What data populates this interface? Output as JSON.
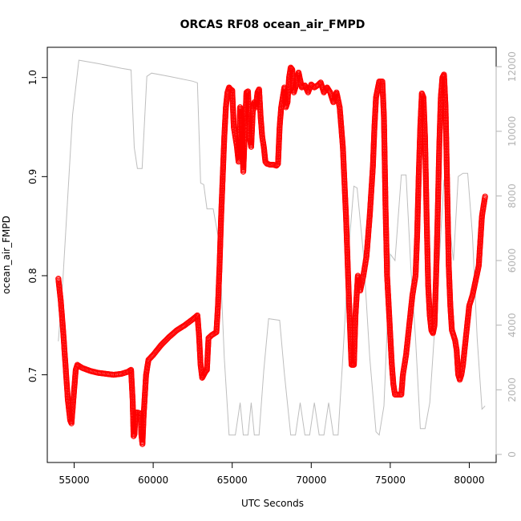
{
  "chart_data": {
    "type": "scatter",
    "title": "ORCAS RF08 ocean_air_FMPD",
    "xlabel": "UTC Seconds",
    "ylabel": "ocean_air_FMPD",
    "xlim": [
      53300,
      81700
    ],
    "ylim": [
      0.6115,
      1.0305
    ],
    "y2lim": [
      -250,
      12600
    ],
    "x_ticks": [
      55000,
      60000,
      65000,
      70000,
      75000,
      80000
    ],
    "y_ticks": [
      0.7,
      0.8,
      0.9,
      1.0
    ],
    "y2_ticks": [
      0,
      2000,
      4000,
      6000,
      8000,
      10000,
      12000
    ],
    "x_tick_labels": [
      "55000",
      "60000",
      "65000",
      "70000",
      "75000",
      "80000"
    ],
    "y_tick_labels": [
      "0.7",
      "0.8",
      "0.9",
      "1.0"
    ],
    "y2_tick_labels": [
      "0",
      "2000",
      "4000",
      "6000",
      "8000",
      "10000",
      "12000"
    ],
    "grid": false,
    "colors": {
      "primary": "#ff0000",
      "secondary": "#bebebe",
      "axis": "#000000",
      "axis_right": "#b3b3b3"
    },
    "series": [
      {
        "axis": "left",
        "style": "open-circles",
        "points": [
          [
            54000,
            0.797
          ],
          [
            54150,
            0.775
          ],
          [
            54300,
            0.745
          ],
          [
            54450,
            0.71
          ],
          [
            54600,
            0.675
          ],
          [
            54750,
            0.654
          ],
          [
            54830,
            0.651
          ],
          [
            54950,
            0.675
          ],
          [
            55100,
            0.705
          ],
          [
            55200,
            0.71
          ],
          [
            55500,
            0.707
          ],
          [
            56000,
            0.704
          ],
          [
            56500,
            0.702
          ],
          [
            57000,
            0.701
          ],
          [
            57500,
            0.7
          ],
          [
            58000,
            0.701
          ],
          [
            58400,
            0.703
          ],
          [
            58600,
            0.705
          ],
          [
            58700,
            0.675
          ],
          [
            58760,
            0.638
          ],
          [
            58820,
            0.64
          ],
          [
            58880,
            0.662
          ],
          [
            59000,
            0.662
          ],
          [
            59200,
            0.661
          ],
          [
            59250,
            0.64
          ],
          [
            59320,
            0.63
          ],
          [
            59400,
            0.66
          ],
          [
            59550,
            0.7
          ],
          [
            59700,
            0.715
          ],
          [
            60000,
            0.72
          ],
          [
            60500,
            0.73
          ],
          [
            61000,
            0.738
          ],
          [
            61500,
            0.745
          ],
          [
            62000,
            0.75
          ],
          [
            62500,
            0.756
          ],
          [
            62800,
            0.76
          ],
          [
            62900,
            0.74
          ],
          [
            63000,
            0.71
          ],
          [
            63100,
            0.697
          ],
          [
            63200,
            0.7
          ],
          [
            63300,
            0.703
          ],
          [
            63400,
            0.705
          ],
          [
            63500,
            0.737
          ],
          [
            63700,
            0.74
          ],
          [
            63900,
            0.742
          ],
          [
            64000,
            0.743
          ],
          [
            64100,
            0.77
          ],
          [
            64200,
            0.81
          ],
          [
            64300,
            0.86
          ],
          [
            64400,
            0.9
          ],
          [
            64500,
            0.94
          ],
          [
            64600,
            0.97
          ],
          [
            64700,
            0.985
          ],
          [
            64800,
            0.99
          ],
          [
            64900,
            0.988
          ],
          [
            65000,
            0.987
          ],
          [
            65100,
            0.95
          ],
          [
            65200,
            0.94
          ],
          [
            65300,
            0.93
          ],
          [
            65400,
            0.915
          ],
          [
            65500,
            0.97
          ],
          [
            65600,
            0.96
          ],
          [
            65700,
            0.905
          ],
          [
            65800,
            0.945
          ],
          [
            65900,
            0.985
          ],
          [
            66000,
            0.986
          ],
          [
            66100,
            0.94
          ],
          [
            66200,
            0.93
          ],
          [
            66300,
            0.965
          ],
          [
            66400,
            0.975
          ],
          [
            66500,
            0.97
          ],
          [
            66600,
            0.985
          ],
          [
            66700,
            0.988
          ],
          [
            66800,
            0.96
          ],
          [
            66900,
            0.94
          ],
          [
            67000,
            0.93
          ],
          [
            67100,
            0.915
          ],
          [
            67200,
            0.913
          ],
          [
            67400,
            0.912
          ],
          [
            67600,
            0.912
          ],
          [
            67800,
            0.911
          ],
          [
            67900,
            0.913
          ],
          [
            68000,
            0.95
          ],
          [
            68100,
            0.97
          ],
          [
            68200,
            0.98
          ],
          [
            68300,
            0.99
          ],
          [
            68400,
            0.97
          ],
          [
            68500,
            0.975
          ],
          [
            68600,
            1.0
          ],
          [
            68700,
            1.01
          ],
          [
            68800,
            1.008
          ],
          [
            68900,
            0.985
          ],
          [
            69000,
            0.99
          ],
          [
            69200,
            1.005
          ],
          [
            69400,
            0.99
          ],
          [
            69600,
            0.992
          ],
          [
            69800,
            0.985
          ],
          [
            70000,
            0.993
          ],
          [
            70200,
            0.99
          ],
          [
            70400,
            0.992
          ],
          [
            70600,
            0.995
          ],
          [
            70800,
            0.985
          ],
          [
            71000,
            0.99
          ],
          [
            71200,
            0.985
          ],
          [
            71400,
            0.975
          ],
          [
            71600,
            0.985
          ],
          [
            71800,
            0.97
          ],
          [
            72000,
            0.93
          ],
          [
            72200,
            0.86
          ],
          [
            72400,
            0.77
          ],
          [
            72550,
            0.71
          ],
          [
            72700,
            0.71
          ],
          [
            72800,
            0.76
          ],
          [
            72950,
            0.8
          ],
          [
            73100,
            0.785
          ],
          [
            73300,
            0.8
          ],
          [
            73500,
            0.82
          ],
          [
            73700,
            0.86
          ],
          [
            73900,
            0.91
          ],
          [
            74000,
            0.95
          ],
          [
            74100,
            0.98
          ],
          [
            74300,
            0.996
          ],
          [
            74500,
            0.996
          ],
          [
            74600,
            0.96
          ],
          [
            74700,
            0.87
          ],
          [
            74800,
            0.8
          ],
          [
            74900,
            0.77
          ],
          [
            75000,
            0.74
          ],
          [
            75100,
            0.71
          ],
          [
            75200,
            0.69
          ],
          [
            75300,
            0.68
          ],
          [
            75500,
            0.68
          ],
          [
            75700,
            0.68
          ],
          [
            75800,
            0.7
          ],
          [
            76000,
            0.72
          ],
          [
            76200,
            0.75
          ],
          [
            76400,
            0.78
          ],
          [
            76600,
            0.8
          ],
          [
            76700,
            0.84
          ],
          [
            76800,
            0.9
          ],
          [
            76900,
            0.95
          ],
          [
            77000,
            0.984
          ],
          [
            77100,
            0.98
          ],
          [
            77200,
            0.94
          ],
          [
            77300,
            0.86
          ],
          [
            77400,
            0.79
          ],
          [
            77500,
            0.76
          ],
          [
            77600,
            0.745
          ],
          [
            77700,
            0.742
          ],
          [
            77800,
            0.75
          ],
          [
            77900,
            0.8
          ],
          [
            78000,
            0.86
          ],
          [
            78100,
            0.93
          ],
          [
            78200,
            0.98
          ],
          [
            78300,
            1.0
          ],
          [
            78400,
            1.003
          ],
          [
            78500,
            0.97
          ],
          [
            78600,
            0.89
          ],
          [
            78700,
            0.81
          ],
          [
            78800,
            0.77
          ],
          [
            78900,
            0.745
          ],
          [
            79000,
            0.74
          ],
          [
            79100,
            0.735
          ],
          [
            79200,
            0.725
          ],
          [
            79300,
            0.7
          ],
          [
            79400,
            0.695
          ],
          [
            79500,
            0.7
          ],
          [
            79600,
            0.71
          ],
          [
            79800,
            0.74
          ],
          [
            80000,
            0.77
          ],
          [
            80200,
            0.78
          ],
          [
            80400,
            0.795
          ],
          [
            80600,
            0.81
          ],
          [
            80800,
            0.86
          ],
          [
            81000,
            0.88
          ]
        ]
      },
      {
        "axis": "right",
        "style": "line",
        "points": [
          [
            54000,
            3500
          ],
          [
            54300,
            5500
          ],
          [
            54600,
            8000
          ],
          [
            54900,
            10500
          ],
          [
            55300,
            12200
          ],
          [
            56500,
            12100
          ],
          [
            58000,
            11950
          ],
          [
            58600,
            11900
          ],
          [
            58800,
            9500
          ],
          [
            59000,
            8850
          ],
          [
            59300,
            8850
          ],
          [
            59600,
            11700
          ],
          [
            59900,
            11800
          ],
          [
            61000,
            11700
          ],
          [
            62500,
            11550
          ],
          [
            62800,
            11500
          ],
          [
            63000,
            8400
          ],
          [
            63200,
            8350
          ],
          [
            63400,
            7600
          ],
          [
            63800,
            7600
          ],
          [
            64200,
            6500
          ],
          [
            64500,
            3000
          ],
          [
            64800,
            600
          ],
          [
            65200,
            600
          ],
          [
            65500,
            1600
          ],
          [
            65700,
            600
          ],
          [
            66000,
            600
          ],
          [
            66200,
            1600
          ],
          [
            66400,
            600
          ],
          [
            66700,
            600
          ],
          [
            67000,
            2600
          ],
          [
            67300,
            4200
          ],
          [
            68000,
            4150
          ],
          [
            68300,
            2500
          ],
          [
            68700,
            600
          ],
          [
            69000,
            600
          ],
          [
            69300,
            1600
          ],
          [
            69600,
            600
          ],
          [
            69900,
            600
          ],
          [
            70200,
            1600
          ],
          [
            70500,
            600
          ],
          [
            70800,
            600
          ],
          [
            71100,
            1600
          ],
          [
            71400,
            600
          ],
          [
            71700,
            600
          ],
          [
            72000,
            3000
          ],
          [
            72400,
            6500
          ],
          [
            72700,
            8300
          ],
          [
            72900,
            8250
          ],
          [
            73300,
            6200
          ],
          [
            73700,
            3000
          ],
          [
            74100,
            700
          ],
          [
            74300,
            600
          ],
          [
            74600,
            1500
          ],
          [
            75000,
            6200
          ],
          [
            75300,
            6000
          ],
          [
            75700,
            8650
          ],
          [
            76000,
            8650
          ],
          [
            76300,
            5800
          ],
          [
            76600,
            3600
          ],
          [
            76900,
            800
          ],
          [
            77200,
            800
          ],
          [
            77500,
            1600
          ],
          [
            77800,
            3800
          ],
          [
            78100,
            6000
          ],
          [
            78400,
            8500
          ],
          [
            78700,
            7300
          ],
          [
            79000,
            6000
          ],
          [
            79300,
            8600
          ],
          [
            79600,
            8700
          ],
          [
            79900,
            8700
          ],
          [
            80200,
            6800
          ],
          [
            80500,
            3600
          ],
          [
            80800,
            1400
          ],
          [
            81000,
            1500
          ]
        ]
      }
    ]
  }
}
